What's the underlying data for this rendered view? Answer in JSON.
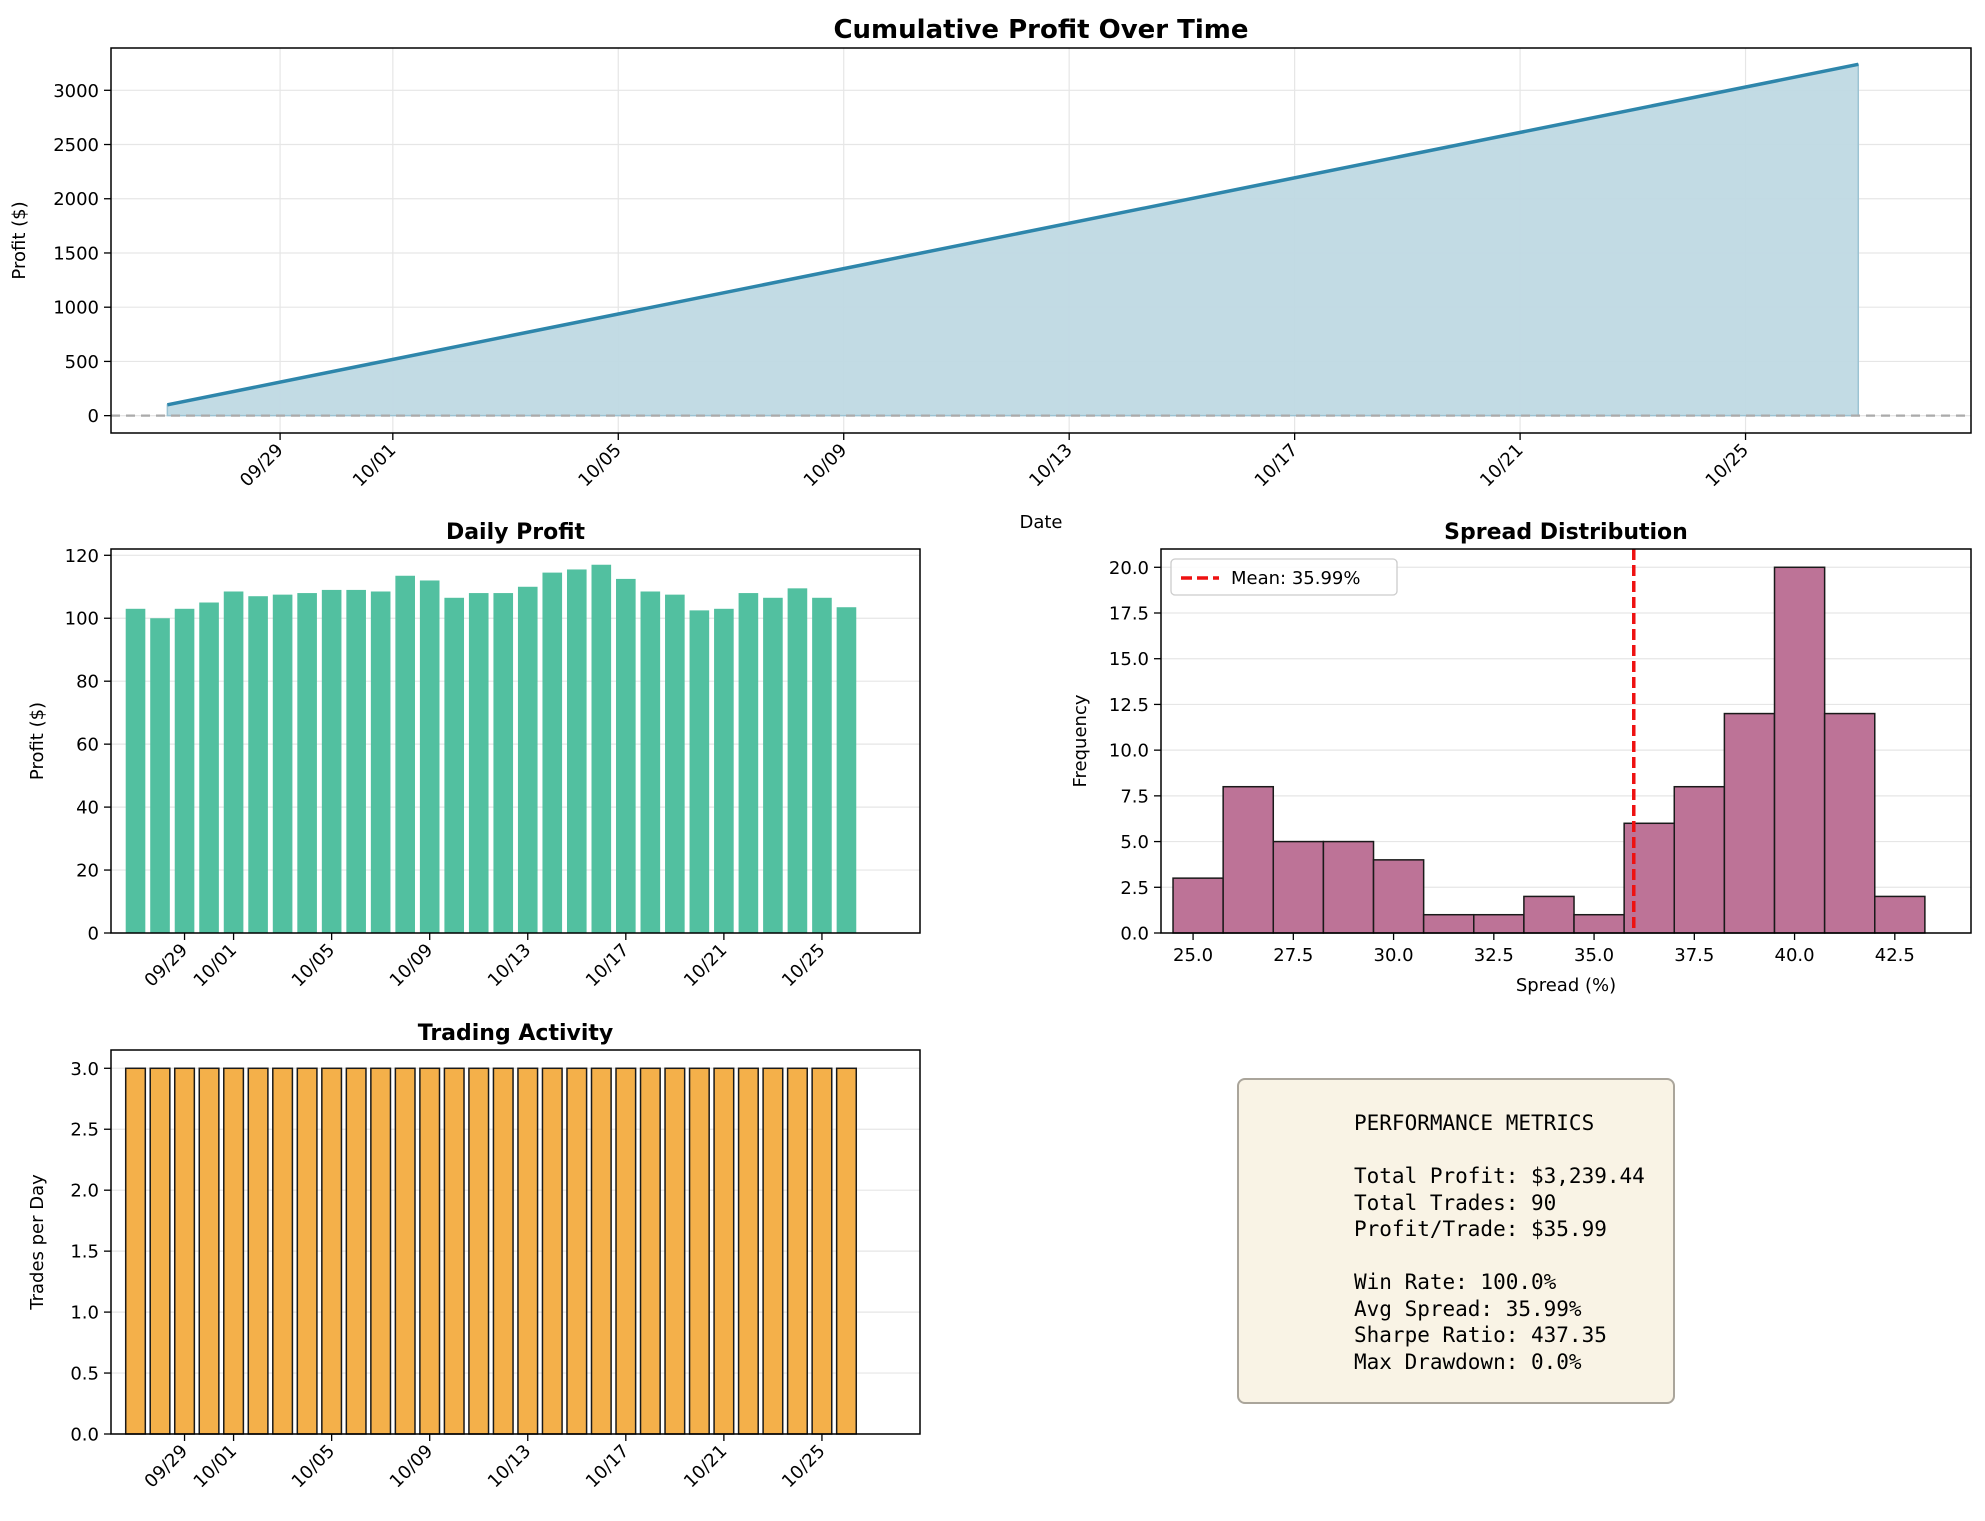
{
  "colors": {
    "cumulative_line": "#2e86ab",
    "cumulative_fill": "#bfd9e3",
    "daily_bar": "#52c0a0",
    "spread_bar": "#bd7397",
    "activity_bar": "#f4b04a",
    "mean_line": "#ee1111",
    "zero_line": "#aaaaaa",
    "metrics_bg": "#f9f3e5"
  },
  "chart_data": [
    {
      "id": "cumulative",
      "type": "area",
      "title": "Cumulative Profit Over Time",
      "xlabel": "Date",
      "ylabel": "Profit ($)",
      "x_range": [
        "2023-09-26",
        "2023-10-29"
      ],
      "ylim": [
        -160,
        3390
      ],
      "x_ticks": [
        "09/29",
        "10/01",
        "10/05",
        "10/09",
        "10/13",
        "10/17",
        "10/21",
        "10/25"
      ],
      "x_tick_dates": [
        "2023-09-29",
        "2023-10-01",
        "2023-10-05",
        "2023-10-09",
        "2023-10-13",
        "2023-10-17",
        "2023-10-21",
        "2023-10-25"
      ],
      "y_ticks": [
        0,
        500,
        1000,
        1500,
        2000,
        2500,
        3000
      ],
      "grid": true,
      "reference_line": 0,
      "x": [
        "2023-09-27",
        "2023-10-27"
      ],
      "series": [
        {
          "values": [
            100,
            3239.44
          ]
        }
      ]
    },
    {
      "id": "daily",
      "type": "bar",
      "title": "Daily Profit",
      "xlabel": "",
      "ylabel": "Profit ($)",
      "x_range": [
        "2023-09-26",
        "2023-10-29"
      ],
      "ylim": [
        0,
        122
      ],
      "x_ticks": [
        "09/29",
        "10/01",
        "10/05",
        "10/09",
        "10/13",
        "10/17",
        "10/21",
        "10/25"
      ],
      "x_tick_dates": [
        "2023-09-29",
        "2023-10-01",
        "2023-10-05",
        "2023-10-09",
        "2023-10-13",
        "2023-10-17",
        "2023-10-21",
        "2023-10-25"
      ],
      "y_ticks": [
        0,
        20,
        40,
        60,
        80,
        100,
        120
      ],
      "grid": true,
      "categories": [
        "2023-09-27",
        "2023-09-28",
        "2023-09-29",
        "2023-09-30",
        "2023-10-01",
        "2023-10-02",
        "2023-10-03",
        "2023-10-04",
        "2023-10-05",
        "2023-10-06",
        "2023-10-07",
        "2023-10-08",
        "2023-10-09",
        "2023-10-10",
        "2023-10-11",
        "2023-10-12",
        "2023-10-13",
        "2023-10-14",
        "2023-10-15",
        "2023-10-16",
        "2023-10-17",
        "2023-10-18",
        "2023-10-19",
        "2023-10-20",
        "2023-10-21",
        "2023-10-22",
        "2023-10-23",
        "2023-10-24",
        "2023-10-25",
        "2023-10-26"
      ],
      "values": [
        103,
        100,
        103,
        105,
        108.5,
        107,
        107.5,
        108,
        109,
        109,
        108.5,
        113.5,
        112,
        106.5,
        108,
        108,
        110,
        114.5,
        115.5,
        117,
        112.5,
        108.5,
        107.5,
        102.5,
        103,
        108,
        106.5,
        109.5,
        106.5,
        103.5
      ]
    },
    {
      "id": "spread",
      "type": "bar",
      "title": "Spread Distribution",
      "xlabel": "Spread (%)",
      "ylabel": "Frequency",
      "xlim": [
        24.2,
        44.4
      ],
      "ylim": [
        0,
        21
      ],
      "x_ticks": [
        "25.0",
        "27.5",
        "30.0",
        "32.5",
        "35.0",
        "37.5",
        "40.0",
        "42.5"
      ],
      "y_ticks": [
        "0.0",
        "2.5",
        "5.0",
        "7.5",
        "10.0",
        "12.5",
        "15.0",
        "17.5",
        "20.0"
      ],
      "grid": true,
      "bin_edges": [
        24.5,
        25.75,
        27.0,
        28.25,
        29.5,
        30.75,
        32.0,
        33.25,
        34.5,
        35.75,
        37.0,
        38.25,
        39.5,
        40.75,
        42.0,
        43.25
      ],
      "values": [
        3,
        8,
        5,
        5,
        4,
        1,
        1,
        2,
        1,
        6,
        8,
        12,
        20,
        12,
        2
      ],
      "mean": 35.99,
      "legend": {
        "position": "top-left",
        "label": "Mean: 35.99%"
      }
    },
    {
      "id": "activity",
      "type": "bar",
      "title": "Trading Activity",
      "xlabel": "",
      "ylabel": "Trades per Day",
      "x_range": [
        "2023-09-26",
        "2023-10-29"
      ],
      "ylim": [
        0,
        3.15
      ],
      "x_ticks": [
        "09/29",
        "10/01",
        "10/05",
        "10/09",
        "10/13",
        "10/17",
        "10/21",
        "10/25"
      ],
      "x_tick_dates": [
        "2023-09-29",
        "2023-10-01",
        "2023-10-05",
        "2023-10-09",
        "2023-10-13",
        "2023-10-17",
        "2023-10-21",
        "2023-10-25"
      ],
      "y_ticks": [
        "0.0",
        "0.5",
        "1.0",
        "1.5",
        "2.0",
        "2.5",
        "3.0"
      ],
      "grid": true,
      "categories": [
        "2023-09-27",
        "2023-09-28",
        "2023-09-29",
        "2023-09-30",
        "2023-10-01",
        "2023-10-02",
        "2023-10-03",
        "2023-10-04",
        "2023-10-05",
        "2023-10-06",
        "2023-10-07",
        "2023-10-08",
        "2023-10-09",
        "2023-10-10",
        "2023-10-11",
        "2023-10-12",
        "2023-10-13",
        "2023-10-14",
        "2023-10-15",
        "2023-10-16",
        "2023-10-17",
        "2023-10-18",
        "2023-10-19",
        "2023-10-20",
        "2023-10-21",
        "2023-10-22",
        "2023-10-23",
        "2023-10-24",
        "2023-10-25",
        "2023-10-26"
      ],
      "values": [
        3,
        3,
        3,
        3,
        3,
        3,
        3,
        3,
        3,
        3,
        3,
        3,
        3,
        3,
        3,
        3,
        3,
        3,
        3,
        3,
        3,
        3,
        3,
        3,
        3,
        3,
        3,
        3,
        3,
        3
      ]
    }
  ],
  "metrics": {
    "heading": "PERFORMANCE METRICS",
    "total_profit": "Total Profit: $3,239.44",
    "total_trades": "Total Trades: 90",
    "profit_per_trade": "Profit/Trade: $35.99",
    "win_rate": "Win Rate: 100.0%",
    "avg_spread": "Avg Spread: 35.99%",
    "sharpe_ratio": "Sharpe Ratio: 437.35",
    "max_drawdown": "Max Drawdown: 0.0%"
  }
}
